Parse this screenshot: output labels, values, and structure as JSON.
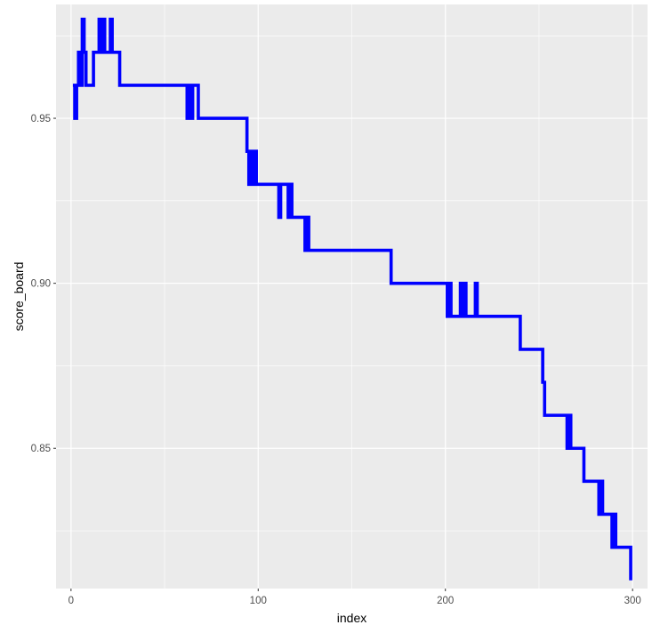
{
  "chart_data": {
    "type": "line",
    "title": "",
    "xlabel": "index",
    "ylabel": "score_board",
    "xlim": [
      -8,
      308
    ],
    "ylim": [
      0.8075,
      0.9845
    ],
    "x_ticks": [
      0,
      100,
      200,
      300
    ],
    "x_tick_labels": [
      "0",
      "100",
      "200",
      "300"
    ],
    "y_ticks": [
      0.85,
      0.9,
      0.95
    ],
    "y_tick_labels": [
      "0.85",
      "0.90",
      "0.95"
    ],
    "grid": true,
    "legend": "none",
    "series": [
      {
        "color": "#0000ff",
        "step": true,
        "x": [
          1,
          2,
          3,
          4,
          5,
          6,
          7,
          8,
          9,
          10,
          11,
          12,
          14,
          15,
          16,
          17,
          18,
          19,
          20,
          21,
          22,
          23,
          26,
          62,
          63,
          64,
          65,
          68,
          94,
          95,
          96,
          97,
          98,
          99,
          110,
          111,
          112,
          113,
          114,
          115,
          116,
          117,
          118,
          119,
          125,
          126,
          127,
          128,
          170,
          171,
          172,
          200,
          201,
          202,
          203,
          206,
          207,
          208,
          209,
          210,
          211,
          212,
          213,
          215,
          216,
          217,
          218,
          219,
          220,
          240,
          241,
          252,
          253,
          264,
          265,
          266,
          267,
          268,
          273,
          274,
          281,
          282,
          283,
          284,
          285,
          286,
          288,
          289,
          290,
          291,
          292,
          299
        ],
        "y": [
          0.96,
          0.95,
          0.96,
          0.97,
          0.96,
          0.98,
          0.97,
          0.96,
          0.96,
          0.96,
          0.96,
          0.97,
          0.97,
          0.98,
          0.97,
          0.98,
          0.97,
          0.97,
          0.97,
          0.98,
          0.97,
          0.97,
          0.96,
          0.95,
          0.96,
          0.95,
          0.96,
          0.95,
          0.94,
          0.93,
          0.94,
          0.93,
          0.94,
          0.93,
          0.93,
          0.92,
          0.93,
          0.93,
          0.93,
          0.93,
          0.92,
          0.93,
          0.92,
          0.92,
          0.91,
          0.92,
          0.91,
          0.91,
          0.91,
          0.9,
          0.9,
          0.9,
          0.89,
          0.9,
          0.89,
          0.89,
          0.89,
          0.9,
          0.89,
          0.9,
          0.89,
          0.89,
          0.89,
          0.89,
          0.9,
          0.89,
          0.89,
          0.89,
          0.89,
          0.88,
          0.88,
          0.87,
          0.86,
          0.86,
          0.85,
          0.86,
          0.85,
          0.85,
          0.85,
          0.84,
          0.84,
          0.83,
          0.84,
          0.83,
          0.83,
          0.83,
          0.83,
          0.82,
          0.83,
          0.82,
          0.82,
          0.81
        ]
      }
    ]
  }
}
